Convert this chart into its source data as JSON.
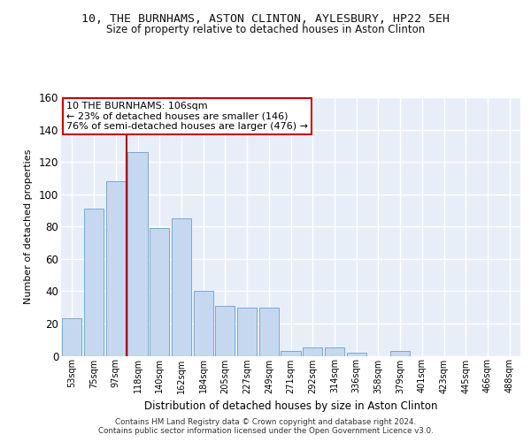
{
  "title_line1": "10, THE BURNHAMS, ASTON CLINTON, AYLESBURY, HP22 5EH",
  "title_line2": "Size of property relative to detached houses in Aston Clinton",
  "xlabel": "Distribution of detached houses by size in Aston Clinton",
  "ylabel": "Number of detached properties",
  "bar_color": "#c5d8f0",
  "bar_edge_color": "#6aa0cc",
  "categories": [
    "53sqm",
    "75sqm",
    "97sqm",
    "118sqm",
    "140sqm",
    "162sqm",
    "184sqm",
    "205sqm",
    "227sqm",
    "249sqm",
    "271sqm",
    "292sqm",
    "314sqm",
    "336sqm",
    "358sqm",
    "379sqm",
    "401sqm",
    "423sqm",
    "445sqm",
    "466sqm",
    "488sqm"
  ],
  "values": [
    23,
    91,
    108,
    126,
    79,
    85,
    40,
    31,
    30,
    30,
    3,
    5,
    5,
    2,
    0,
    3,
    0,
    0,
    0,
    0,
    0
  ],
  "ylim": [
    0,
    160
  ],
  "yticks": [
    0,
    20,
    40,
    60,
    80,
    100,
    120,
    140,
    160
  ],
  "annotation_box_text": "10 THE BURNHAMS: 106sqm\n← 23% of detached houses are smaller (146)\n76% of semi-detached houses are larger (476) →",
  "background_color": "#e8eef8",
  "grid_color": "#ffffff",
  "footer_text": "Contains HM Land Registry data © Crown copyright and database right 2024.\nContains public sector information licensed under the Open Government Licence v3.0.",
  "red_line_color": "#aa0000",
  "box_edge_color": "#cc0000",
  "vline_index": 2.5
}
